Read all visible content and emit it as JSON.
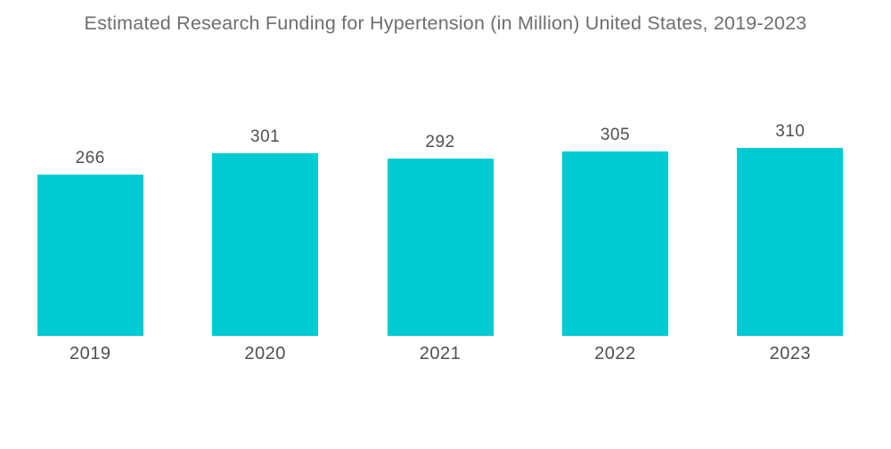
{
  "header": {
    "title": "Estimated Research Funding for Hypertension (in Million) United States, 2019-2023"
  },
  "chart_data": {
    "type": "bar",
    "title": "Estimated Research Funding for Hypertension (in Million) United States, 2019-2023",
    "categories": [
      "2019",
      "2020",
      "2021",
      "2022",
      "2023"
    ],
    "values": [
      266,
      301,
      292,
      305,
      310
    ],
    "xlabel": "",
    "ylabel": "",
    "ylim": [
      0,
      310
    ],
    "grid": false,
    "legend": false,
    "axes_visible": false,
    "data_labels": true,
    "bar_color": "#00cbd2"
  },
  "colors": {
    "background": "#ffffff",
    "bar": "#00cbd2",
    "title_text": "#6e6e6e",
    "label_text": "#4f4f4f"
  }
}
